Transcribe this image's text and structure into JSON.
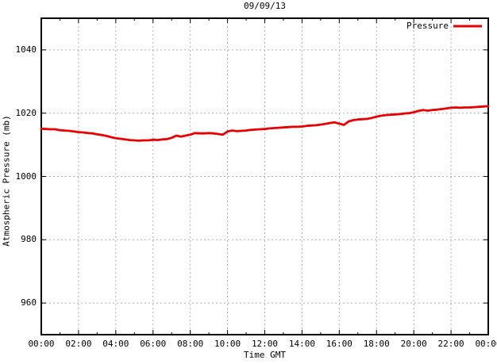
{
  "colors": {
    "line": "#e60000",
    "grid": "#b0b0b0",
    "border": "#000000",
    "text": "#000000",
    "background": "#ffffff"
  },
  "chart_data": {
    "type": "line",
    "title": "09/09/13",
    "xlabel": "Time GMT",
    "ylabel": "Atmospheric Pressure (mb)",
    "xlim_hours": [
      0,
      24
    ],
    "ylim": [
      950,
      1050
    ],
    "grid": true,
    "legend_position": "top-right-inside",
    "x_ticks": [
      "00:00",
      "02:00",
      "04:00",
      "06:00",
      "08:00",
      "10:00",
      "12:00",
      "14:00",
      "16:00",
      "18:00",
      "20:00",
      "22:00",
      "00:00"
    ],
    "x_tick_hours": [
      0,
      2,
      4,
      6,
      8,
      10,
      12,
      14,
      16,
      18,
      20,
      22,
      24
    ],
    "x_minor_tick_hours": [
      1,
      3,
      5,
      7,
      9,
      11,
      13,
      15,
      17,
      19,
      21,
      23
    ],
    "y_ticks": [
      960,
      980,
      1000,
      1020,
      1040
    ],
    "series": [
      {
        "name": "Pressure",
        "color": "#e60000",
        "x_hours": [
          0,
          0.25,
          0.5,
          0.75,
          1,
          1.25,
          1.5,
          1.75,
          2,
          2.25,
          2.5,
          2.75,
          3,
          3.25,
          3.5,
          3.75,
          4,
          4.25,
          4.5,
          4.75,
          5,
          5.25,
          5.5,
          5.75,
          6,
          6.25,
          6.5,
          6.75,
          7,
          7.25,
          7.5,
          7.75,
          8,
          8.25,
          8.5,
          8.75,
          9,
          9.25,
          9.5,
          9.75,
          10,
          10.25,
          10.5,
          10.75,
          11,
          11.25,
          11.5,
          11.75,
          12,
          12.25,
          12.5,
          12.75,
          13,
          13.25,
          13.5,
          13.75,
          14,
          14.25,
          14.5,
          14.75,
          15,
          15.25,
          15.5,
          15.75,
          16,
          16.25,
          16.5,
          16.75,
          17,
          17.25,
          17.5,
          17.75,
          18,
          18.25,
          18.5,
          18.75,
          19,
          19.25,
          19.5,
          19.75,
          20,
          20.25,
          20.5,
          20.75,
          21,
          21.25,
          21.5,
          21.75,
          22,
          22.25,
          22.5,
          22.75,
          23,
          23.25,
          23.5,
          23.75,
          24
        ],
        "values": [
          1015.1,
          1015.0,
          1014.9,
          1014.9,
          1014.6,
          1014.5,
          1014.4,
          1014.2,
          1014.0,
          1013.9,
          1013.7,
          1013.6,
          1013.3,
          1013.1,
          1012.8,
          1012.4,
          1012.1,
          1011.9,
          1011.7,
          1011.5,
          1011.4,
          1011.3,
          1011.4,
          1011.4,
          1011.6,
          1011.5,
          1011.7,
          1011.8,
          1012.2,
          1012.9,
          1012.6,
          1012.9,
          1013.2,
          1013.7,
          1013.6,
          1013.6,
          1013.7,
          1013.6,
          1013.4,
          1013.2,
          1014.2,
          1014.5,
          1014.3,
          1014.4,
          1014.5,
          1014.7,
          1014.8,
          1014.9,
          1015.0,
          1015.2,
          1015.3,
          1015.4,
          1015.5,
          1015.6,
          1015.7,
          1015.7,
          1015.8,
          1016.0,
          1016.1,
          1016.2,
          1016.4,
          1016.6,
          1016.9,
          1017.1,
          1016.7,
          1016.3,
          1017.4,
          1017.8,
          1018.0,
          1018.1,
          1018.2,
          1018.5,
          1018.9,
          1019.2,
          1019.4,
          1019.5,
          1019.6,
          1019.7,
          1019.9,
          1020.0,
          1020.3,
          1020.7,
          1021.0,
          1020.8,
          1021.0,
          1021.1,
          1021.3,
          1021.5,
          1021.7,
          1021.8,
          1021.7,
          1021.8,
          1021.8,
          1021.9,
          1022.0,
          1022.1,
          1022.2
        ]
      }
    ]
  }
}
